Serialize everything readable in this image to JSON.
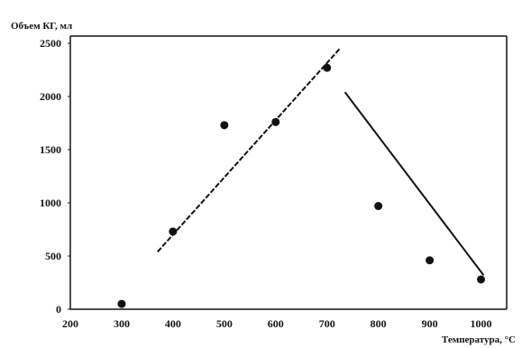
{
  "chart_data": {
    "type": "scatter",
    "xlabel": "Температура, °C",
    "ylabel": "Объем КГ, мл",
    "xlim": [
      200,
      1050
    ],
    "ylim": [
      0,
      2500
    ],
    "xticks": [
      200,
      300,
      400,
      500,
      600,
      700,
      800,
      900,
      1000
    ],
    "yticks": [
      0,
      500,
      1000,
      1500,
      2000,
      2500
    ],
    "grid": false,
    "series": [
      {
        "points": [
          {
            "x": 300,
            "y": 50
          },
          {
            "x": 400,
            "y": 730
          },
          {
            "x": 500,
            "y": 1730
          },
          {
            "x": 600,
            "y": 1760
          },
          {
            "x": 700,
            "y": 2270
          },
          {
            "x": 800,
            "y": 970
          },
          {
            "x": 900,
            "y": 460
          },
          {
            "x": 1000,
            "y": 280
          }
        ]
      }
    ],
    "trendlines": [
      {
        "style": "dashed",
        "x": [
          370,
          725
        ],
        "y": [
          540,
          2450
        ]
      },
      {
        "style": "solid",
        "x": [
          735,
          1005
        ],
        "y": [
          2040,
          320
        ]
      }
    ],
    "colors": {
      "ink": "#111111",
      "background": "#ffffff"
    }
  }
}
